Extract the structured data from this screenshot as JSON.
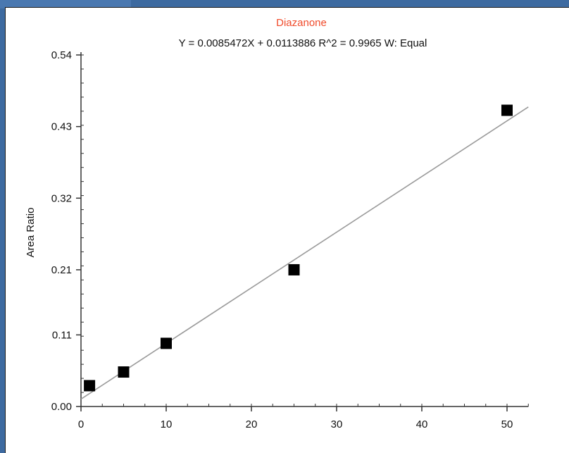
{
  "chart_data": {
    "type": "scatter",
    "title": "Diazanone",
    "subtitle": "Y = 0.0085472X  + 0.0113886 R^2 = 0.9965 W: Equal",
    "xlabel": "",
    "ylabel": "Area Ratio",
    "xlim": [
      0,
      52.5
    ],
    "ylim": [
      0,
      0.54
    ],
    "xticks": [
      0,
      10,
      20,
      30,
      40,
      50
    ],
    "yticks": [
      0.54,
      0.43,
      0.32,
      0.21,
      0.11,
      0.0
    ],
    "ytick_labels": [
      "0.54",
      "0.43",
      "0.32",
      "0.21",
      "0.11",
      "0.00"
    ],
    "series": [
      {
        "x": [
          1,
          5,
          10,
          25,
          50
        ],
        "y": [
          0.032,
          0.053,
          0.097,
          0.21,
          0.455
        ]
      }
    ],
    "fit": {
      "slope": 0.0085472,
      "intercept": 0.0113886,
      "x_range": [
        0,
        52.5
      ]
    },
    "colors": {
      "title": "#f04a2a",
      "marker": "#000000",
      "fit_line": "#9a9a9a",
      "axis": "#333333"
    }
  }
}
